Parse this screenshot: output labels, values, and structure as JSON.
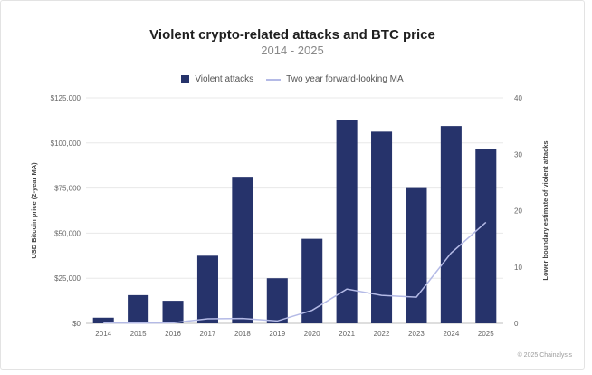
{
  "chart_data": {
    "type": "bar",
    "title": "Violent crypto-related attacks and BTC price",
    "subtitle": "2014 - 2025",
    "categories": [
      "2014",
      "2015",
      "2016",
      "2017",
      "2018",
      "2019",
      "2020",
      "2021",
      "2022",
      "2023",
      "2024",
      "2025"
    ],
    "series": [
      {
        "name": "Violent attacks",
        "type": "bar",
        "axis": "right",
        "color": "#26336b",
        "values": [
          1,
          5,
          4,
          12,
          26,
          8,
          15,
          36,
          34,
          24,
          35,
          31
        ]
      },
      {
        "name": "Two year forward-looking MA",
        "type": "line",
        "axis": "left",
        "color": "#b4bae6",
        "values": [
          300,
          150,
          300,
          2500,
          2700,
          1300,
          7200,
          19000,
          15500,
          14500,
          39000,
          56000
        ]
      }
    ],
    "left_axis": {
      "label": "USD Bitcoin price (2-year MA)",
      "ticks": [
        "$0",
        "$25,000",
        "$50,000",
        "$75,000",
        "$100,000",
        "$125,000"
      ],
      "ylim": [
        0,
        125000
      ]
    },
    "right_axis": {
      "label": "Lower boundary estimate of violent attacks",
      "ticks": [
        "0",
        "10",
        "20",
        "30",
        "40"
      ],
      "ylim": [
        0,
        40
      ]
    },
    "grid": true,
    "legend_position": "top-center",
    "credit": "© 2025 Chainalysis"
  }
}
